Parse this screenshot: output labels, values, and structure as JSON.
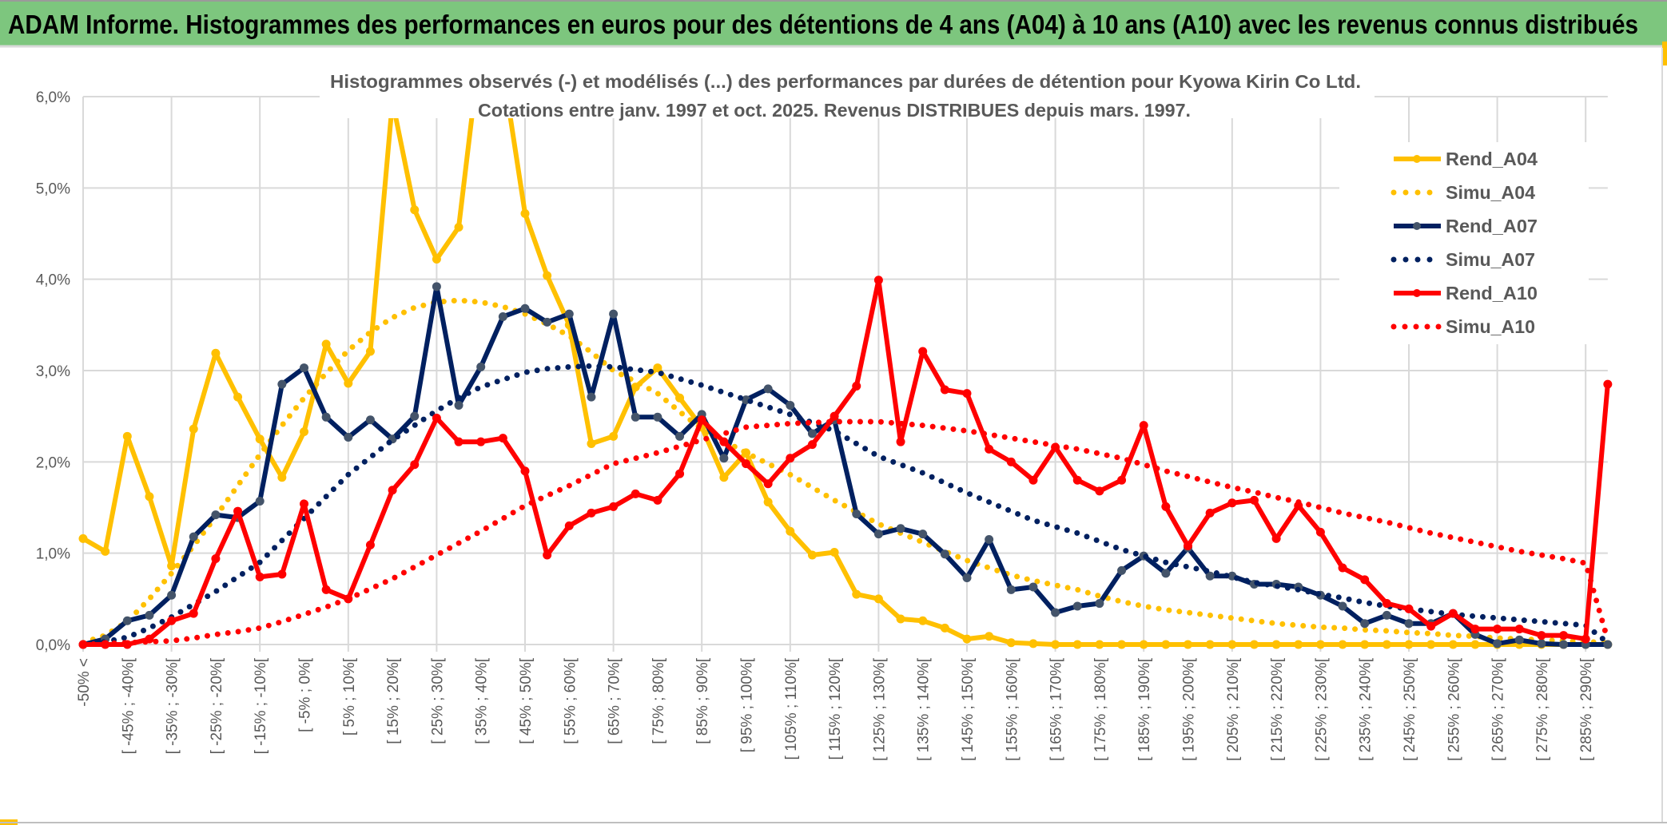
{
  "header": {
    "title": "ADAM Informe. Histogrammes des performances en euros pour des détentions de 4 ans (A04) à 10 ans (A10) avec les revenus connus distribués",
    "background": "#7DC67E"
  },
  "chart_data": {
    "type": "line",
    "title": "Histogrammes observés (-) et modélisés (...) des performances par durées de détention pour Kyowa Kirin Co Ltd.",
    "subtitle": "Cotations entre janv. 1997 et oct. 2025. Revenus DISTRIBUES depuis mars. 1997.",
    "xlabel": "",
    "ylabel": "",
    "ylim": [
      0,
      6
    ],
    "yticks": [
      "0,0%",
      "1,0%",
      "2,0%",
      "3,0%",
      "4,0%",
      "5,0%",
      "6,0%"
    ],
    "grid": true,
    "legend_position": "right",
    "categories": [
      "-50% <",
      "",
      "[ -45% ; -40%[",
      "",
      "[ -35% ; -30%[",
      "",
      "[ -25% ; -20%[",
      "",
      "[ -15% ; -10%[",
      "",
      "[ -5% ; 0%[",
      "",
      "[ 5% ; 10%[",
      "",
      "[ 15% ; 20%[",
      "",
      "[ 25% ; 30%[",
      "",
      "[ 35% ; 40%[",
      "",
      "[ 45% ; 50%[",
      "",
      "[ 55% ; 60%[",
      "",
      "[ 65% ; 70%[",
      "",
      "[ 75% ; 80%[",
      "",
      "[ 85% ; 90%[",
      "",
      "[ 95% ; 100%[",
      "",
      "[ 105% ; 110%[",
      "",
      "[ 115% ; 120%[",
      "",
      "[ 125% ; 130%[",
      "",
      "[ 135% ; 140%[",
      "",
      "[ 145% ; 150%[",
      "",
      "[ 155% ; 160%[",
      "",
      "[ 165% ; 170%[",
      "",
      "[ 175% ; 180%[",
      "",
      "[ 185% ; 190%[",
      "",
      "[ 195% ; 200%[",
      "",
      "[ 205% ; 210%[",
      "",
      "[ 215% ; 220%[",
      "",
      "[ 225% ; 230%[",
      "",
      "[ 235% ; 240%[",
      "",
      "[ 245% ; 250%[",
      "",
      "[ 255% ; 260%[",
      "",
      "[ 265% ; 270%[",
      "",
      "[ 275% ; 280%[",
      "",
      "[ 285% ; 290%[",
      ""
    ],
    "series": [
      {
        "name": "Rend_A04",
        "style": "solid",
        "color": "#FFC000",
        "marker": "#FFC000",
        "values": [
          1.16,
          1.02,
          2.28,
          1.62,
          0.86,
          2.36,
          3.19,
          2.71,
          2.25,
          1.83,
          2.33,
          3.29,
          2.86,
          3.21,
          5.95,
          4.76,
          4.22,
          4.57,
          6.6,
          6.3,
          4.72,
          4.04,
          3.5,
          2.2,
          2.28,
          2.82,
          3.03,
          2.7,
          2.38,
          1.83,
          2.1,
          1.56,
          1.24,
          0.98,
          1.01,
          0.55,
          0.5,
          0.28,
          0.26,
          0.18,
          0.06,
          0.09,
          0.02,
          0.01,
          0,
          0,
          0,
          0,
          0,
          0,
          0,
          0,
          0,
          0,
          0,
          0,
          0,
          0,
          0,
          0,
          0,
          0,
          0,
          0,
          0,
          0,
          0,
          0,
          0,
          0
        ]
      },
      {
        "name": "Simu_A04",
        "style": "dotted",
        "color": "#FFC000",
        "values": [
          0.02,
          0.1,
          0.25,
          0.5,
          0.78,
          1.08,
          1.4,
          1.74,
          2.08,
          2.4,
          2.7,
          2.97,
          3.22,
          3.42,
          3.58,
          3.69,
          3.75,
          3.77,
          3.75,
          3.7,
          3.62,
          3.51,
          3.38,
          3.2,
          3.0,
          2.88,
          2.75,
          2.55,
          2.36,
          2.23,
          2.1,
          1.98,
          1.86,
          1.72,
          1.58,
          1.45,
          1.32,
          1.22,
          1.12,
          1.02,
          0.92,
          0.84,
          0.76,
          0.7,
          0.65,
          0.6,
          0.53,
          0.47,
          0.42,
          0.38,
          0.35,
          0.32,
          0.29,
          0.26,
          0.23,
          0.21,
          0.19,
          0.18,
          0.16,
          0.15,
          0.13,
          0.12,
          0.1,
          0.09,
          0.07,
          0.06,
          0.05,
          0.04,
          0.03,
          0.02
        ]
      },
      {
        "name": "Rend_A07",
        "style": "solid",
        "color": "#002060",
        "marker": "#44546A",
        "values": [
          0,
          0.06,
          0.26,
          0.32,
          0.54,
          1.18,
          1.42,
          1.39,
          1.57,
          2.85,
          3.03,
          2.49,
          2.27,
          2.46,
          2.25,
          2.5,
          3.92,
          2.62,
          3.04,
          3.59,
          3.68,
          3.53,
          3.62,
          2.71,
          3.62,
          2.49,
          2.49,
          2.28,
          2.52,
          2.04,
          2.68,
          2.8,
          2.62,
          2.31,
          2.46,
          1.43,
          1.21,
          1.27,
          1.21,
          0.99,
          0.73,
          1.15,
          0.6,
          0.63,
          0.35,
          0.42,
          0.45,
          0.81,
          0.97,
          0.78,
          1.06,
          0.75,
          0.75,
          0.66,
          0.66,
          0.63,
          0.54,
          0.42,
          0.23,
          0.32,
          0.23,
          0.23,
          0.34,
          0.11,
          0.01,
          0.05,
          0.01,
          0,
          0,
          0
        ]
      },
      {
        "name": "Simu_A07",
        "style": "dotted",
        "color": "#002060",
        "values": [
          0,
          0.03,
          0.08,
          0.18,
          0.3,
          0.44,
          0.58,
          0.74,
          0.9,
          1.14,
          1.38,
          1.62,
          1.86,
          2.05,
          2.24,
          2.4,
          2.56,
          2.7,
          2.82,
          2.9,
          2.98,
          3.02,
          3.04,
          3.05,
          3.04,
          3.01,
          2.98,
          2.91,
          2.84,
          2.76,
          2.68,
          2.6,
          2.52,
          2.43,
          2.34,
          2.2,
          2.06,
          1.97,
          1.88,
          1.77,
          1.66,
          1.56,
          1.46,
          1.36,
          1.29,
          1.22,
          1.13,
          1.04,
          0.97,
          0.9,
          0.85,
          0.8,
          0.74,
          0.68,
          0.64,
          0.6,
          0.55,
          0.51,
          0.46,
          0.42,
          0.39,
          0.36,
          0.33,
          0.31,
          0.29,
          0.27,
          0.25,
          0.23,
          0.21,
          0.02
        ]
      },
      {
        "name": "Rend_A10",
        "style": "solid",
        "color": "#FF0000",
        "marker": "#FF0000",
        "values": [
          0,
          0,
          0,
          0.06,
          0.26,
          0.34,
          0.94,
          1.46,
          0.74,
          0.77,
          1.54,
          0.6,
          0.5,
          1.09,
          1.69,
          1.97,
          2.48,
          2.22,
          2.22,
          2.26,
          1.9,
          0.98,
          1.3,
          1.44,
          1.51,
          1.65,
          1.58,
          1.87,
          2.46,
          2.22,
          1.98,
          1.76,
          2.04,
          2.19,
          2.5,
          2.83,
          3.99,
          2.22,
          3.21,
          2.79,
          2.75,
          2.14,
          2.0,
          1.8,
          2.16,
          1.8,
          1.68,
          1.8,
          2.4,
          1.51,
          1.08,
          1.44,
          1.55,
          1.58,
          1.16,
          1.52,
          1.23,
          0.84,
          0.71,
          0.45,
          0.39,
          0.2,
          0.34,
          0.17,
          0.17,
          0.17,
          0.1,
          0.1,
          0.06,
          2.85
        ]
      },
      {
        "name": "Simu_A10",
        "style": "dotted",
        "color": "#FF0000",
        "values": [
          0,
          0.01,
          0.02,
          0.03,
          0.04,
          0.07,
          0.11,
          0.14,
          0.18,
          0.25,
          0.33,
          0.41,
          0.5,
          0.61,
          0.72,
          0.85,
          0.98,
          1.11,
          1.24,
          1.38,
          1.52,
          1.63,
          1.74,
          1.86,
          1.98,
          2.04,
          2.1,
          2.17,
          2.24,
          2.31,
          2.38,
          2.4,
          2.42,
          2.43,
          2.44,
          2.44,
          2.44,
          2.42,
          2.4,
          2.37,
          2.34,
          2.3,
          2.26,
          2.22,
          2.18,
          2.14,
          2.09,
          2.04,
          1.97,
          1.9,
          1.84,
          1.78,
          1.72,
          1.67,
          1.61,
          1.56,
          1.5,
          1.44,
          1.39,
          1.34,
          1.28,
          1.22,
          1.17,
          1.12,
          1.07,
          1.02,
          0.98,
          0.94,
          0.89,
          0.05
        ]
      }
    ]
  }
}
